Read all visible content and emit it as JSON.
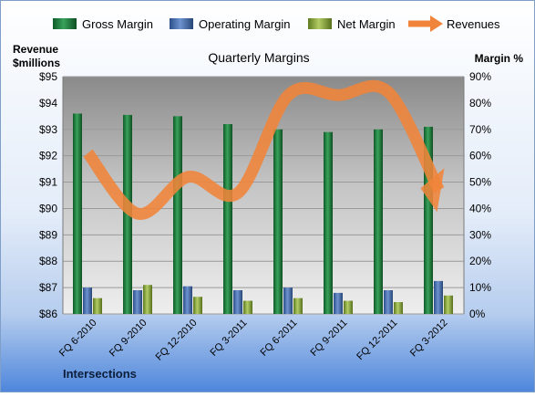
{
  "chart_data": {
    "type": "bar",
    "title": "Quarterly Margins",
    "left_axis_title_line1": "Revenue",
    "left_axis_title_line2": "$millions",
    "right_axis_title": "Margin %",
    "footer_label": "Intersections",
    "categories": [
      "FQ 6-2010",
      "FQ 9-2010",
      "FQ 12-2010",
      "FQ 3-2011",
      "FQ 6-2011",
      "FQ 9-2011",
      "FQ 12-2011",
      "FQ 3-2012"
    ],
    "left_axis": {
      "min": 86,
      "max": 95,
      "ticks": [
        "$86",
        "$87",
        "$88",
        "$89",
        "$90",
        "$91",
        "$92",
        "$93",
        "$94",
        "$95"
      ]
    },
    "right_axis": {
      "min": 0,
      "max": 90,
      "ticks": [
        "0%",
        "10%",
        "20%",
        "30%",
        "40%",
        "50%",
        "60%",
        "70%",
        "80%",
        "90%"
      ]
    },
    "grid": true,
    "legend_position": "top",
    "series": [
      {
        "name": "Gross Margin",
        "kind": "bar",
        "axis": "right",
        "color": "#1f7a3a",
        "values": [
          76,
          75.5,
          75,
          72,
          70,
          69,
          70,
          71
        ]
      },
      {
        "name": "Operating Margin",
        "kind": "bar",
        "axis": "right",
        "color": "#3e66a8",
        "values": [
          10,
          9,
          10.5,
          9,
          10,
          8,
          9,
          12.5
        ]
      },
      {
        "name": "Net Margin",
        "kind": "bar",
        "axis": "right",
        "color": "#8aa63c",
        "values": [
          6,
          11,
          6.5,
          5,
          6,
          5,
          4.5,
          7
        ]
      },
      {
        "name": "Revenues",
        "kind": "line",
        "axis": "left",
        "color": "#f0843a",
        "values": [
          92.1,
          89.8,
          91.2,
          90.6,
          94.3,
          94.3,
          94.4,
          90.7
        ]
      }
    ]
  }
}
